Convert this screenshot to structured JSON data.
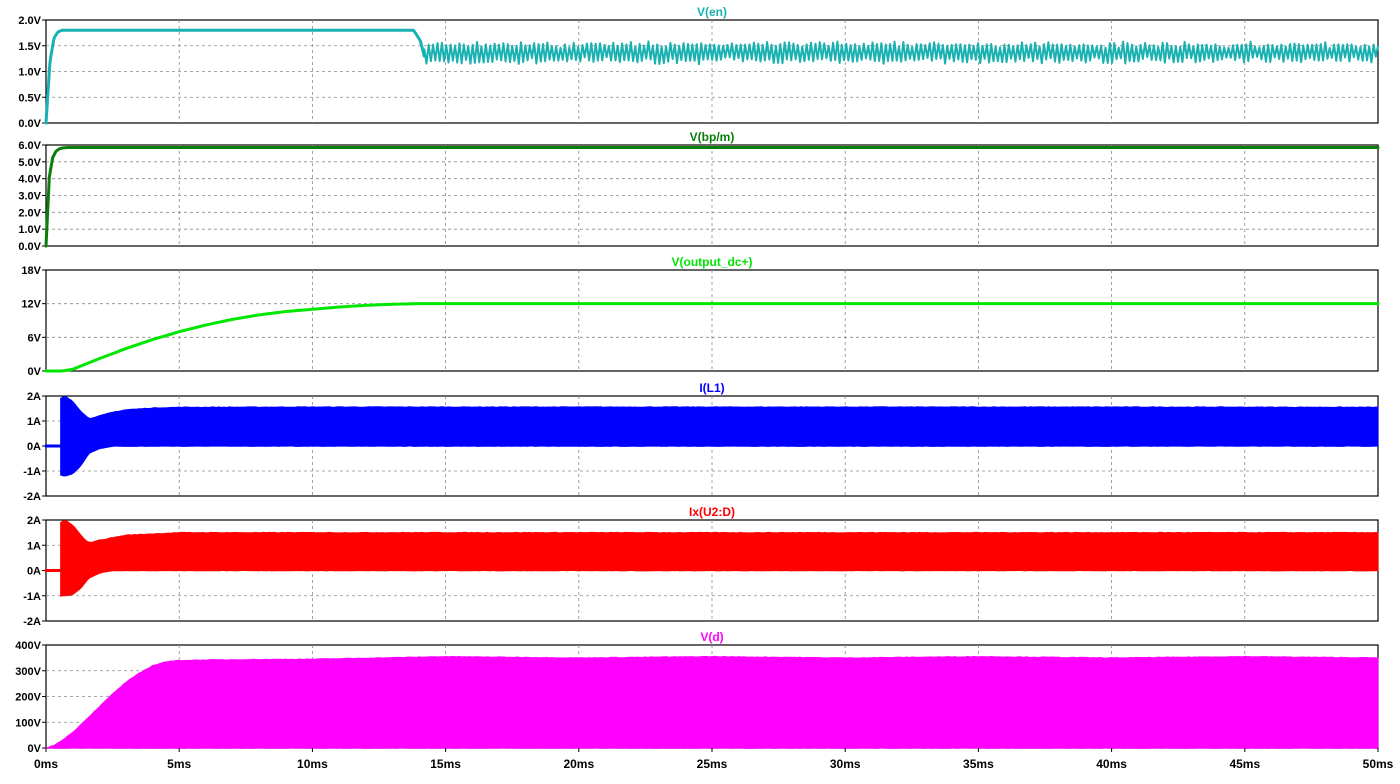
{
  "chart_data": [
    {
      "type": "line",
      "title": "V(en)",
      "color": "#19b1b1",
      "x_unit": "ms",
      "ylim": [
        0,
        2.0
      ],
      "yticks": [
        0.0,
        0.5,
        1.0,
        1.5,
        2.0
      ],
      "ytick_labels": [
        "0.0V",
        "0.5V",
        "1.0V",
        "1.5V",
        "2.0V"
      ],
      "series": [
        {
          "style": "line",
          "x": [
            0,
            0.05,
            0.15,
            0.3,
            0.45,
            0.6,
            1,
            5,
            10,
            13.8,
            14.05,
            14.2
          ],
          "y": [
            0,
            0.4,
            1.2,
            1.65,
            1.77,
            1.8,
            1.8,
            1.8,
            1.8,
            1.8,
            1.6,
            1.3
          ]
        },
        {
          "style": "band",
          "x": [
            14.2,
            20,
            30,
            40,
            50
          ],
          "upper": [
            1.55,
            1.56,
            1.56,
            1.56,
            1.55
          ],
          "lower": [
            1.15,
            1.17,
            1.17,
            1.17,
            1.2
          ]
        }
      ]
    },
    {
      "type": "line",
      "title": "V(bp/m)",
      "color": "#0b7d0b",
      "x_unit": "ms",
      "ylim": [
        0,
        6.0
      ],
      "yticks": [
        0,
        1,
        2,
        3,
        4,
        5,
        6
      ],
      "ytick_labels": [
        "0.0V",
        "1.0V",
        "2.0V",
        "3.0V",
        "4.0V",
        "5.0V",
        "6.0V"
      ],
      "series": [
        {
          "style": "line",
          "x": [
            0,
            0.05,
            0.1,
            0.2,
            0.3,
            0.45,
            0.6,
            0.8,
            1,
            5,
            10,
            20,
            30,
            40,
            50
          ],
          "y": [
            0,
            2.0,
            3.8,
            5.0,
            5.5,
            5.75,
            5.82,
            5.85,
            5.85,
            5.85,
            5.85,
            5.85,
            5.85,
            5.85,
            5.85
          ]
        }
      ]
    },
    {
      "type": "line",
      "title": "V(output_dc+)",
      "color": "#00e600",
      "x_unit": "ms",
      "ylim": [
        0,
        18
      ],
      "yticks": [
        0,
        6,
        12,
        18
      ],
      "ytick_labels": [
        "0V",
        "6V",
        "12V",
        "18V"
      ],
      "series": [
        {
          "style": "line",
          "x": [
            0,
            0.6,
            1,
            2,
            3,
            4,
            5,
            6,
            7,
            8,
            9,
            10,
            11,
            12,
            13,
            14,
            15,
            20,
            30,
            40,
            50
          ],
          "y": [
            0,
            0,
            0.3,
            2.2,
            4.0,
            5.6,
            7.0,
            8.2,
            9.2,
            10.0,
            10.6,
            11.0,
            11.4,
            11.7,
            11.9,
            12.0,
            12.0,
            12.0,
            12.0,
            12.0,
            12.0
          ]
        }
      ]
    },
    {
      "type": "line",
      "title": "I(L1)",
      "color": "#0000ff",
      "x_unit": "ms",
      "ylim": [
        -2,
        2
      ],
      "yticks": [
        -2,
        -1,
        0,
        1,
        2
      ],
      "ytick_labels": [
        "-2A",
        "-1A",
        "0A",
        "1A",
        "2A"
      ],
      "series": [
        {
          "style": "line",
          "x": [
            0,
            0.55
          ],
          "y": [
            0,
            0
          ]
        },
        {
          "style": "band",
          "x": [
            0.55,
            0.7,
            1.0,
            1.3,
            1.6,
            2.0,
            2.5,
            3,
            4,
            5,
            10,
            20,
            30,
            40,
            50
          ],
          "upper": [
            1.9,
            2.0,
            1.8,
            1.4,
            1.1,
            1.2,
            1.35,
            1.45,
            1.52,
            1.55,
            1.56,
            1.56,
            1.56,
            1.56,
            1.55
          ],
          "lower": [
            -1.15,
            -1.2,
            -1.1,
            -0.8,
            -0.3,
            -0.1,
            0,
            0,
            0,
            0,
            0,
            0,
            0,
            0,
            0
          ]
        }
      ]
    },
    {
      "type": "line",
      "title": "Ix(U2:D)",
      "color": "#ff0000",
      "x_unit": "ms",
      "ylim": [
        -2,
        2
      ],
      "yticks": [
        -2,
        -1,
        0,
        1,
        2
      ],
      "ytick_labels": [
        "-2A",
        "-1A",
        "0A",
        "1A",
        "2A"
      ],
      "series": [
        {
          "style": "line",
          "x": [
            0,
            0.55
          ],
          "y": [
            0,
            0
          ]
        },
        {
          "style": "band",
          "x": [
            0.55,
            0.7,
            1.0,
            1.3,
            1.6,
            2.0,
            2.5,
            3,
            4,
            5,
            10,
            20,
            30,
            40,
            50
          ],
          "upper": [
            1.9,
            2.0,
            1.8,
            1.4,
            1.1,
            1.2,
            1.3,
            1.4,
            1.45,
            1.5,
            1.5,
            1.5,
            1.5,
            1.5,
            1.5
          ],
          "lower": [
            -1.0,
            -1.0,
            -0.95,
            -0.7,
            -0.3,
            -0.1,
            0,
            0,
            0,
            0,
            0,
            0,
            0,
            0,
            0
          ]
        }
      ]
    },
    {
      "type": "area",
      "title": "V(d)",
      "color": "#ff00ff",
      "x_unit": "ms",
      "ylim": [
        0,
        400
      ],
      "yticks": [
        0,
        100,
        200,
        300,
        400
      ],
      "ytick_labels": [
        "0V",
        "100V",
        "200V",
        "300V",
        "400V"
      ],
      "xticks": [
        0,
        5,
        10,
        15,
        20,
        25,
        30,
        35,
        40,
        45,
        50
      ],
      "xtick_labels": [
        "0ms",
        "5ms",
        "10ms",
        "15ms",
        "20ms",
        "25ms",
        "30ms",
        "35ms",
        "40ms",
        "45ms",
        "50ms"
      ],
      "series": [
        {
          "style": "band",
          "x": [
            0,
            0.3,
            0.6,
            1,
            1.5,
            2,
            2.5,
            3,
            3.5,
            4,
            4.5,
            5,
            6,
            8,
            10,
            15,
            20,
            25,
            30,
            35,
            40,
            45,
            50
          ],
          "upper": [
            0,
            10,
            30,
            60,
            110,
            160,
            210,
            255,
            290,
            320,
            335,
            340,
            342,
            344,
            345,
            355,
            350,
            355,
            350,
            355,
            350,
            355,
            350
          ],
          "lower": [
            0,
            0,
            0,
            0,
            0,
            0,
            0,
            0,
            0,
            0,
            0,
            0,
            0,
            0,
            0,
            0,
            0,
            0,
            0,
            0,
            0,
            0,
            0
          ]
        }
      ]
    }
  ]
}
